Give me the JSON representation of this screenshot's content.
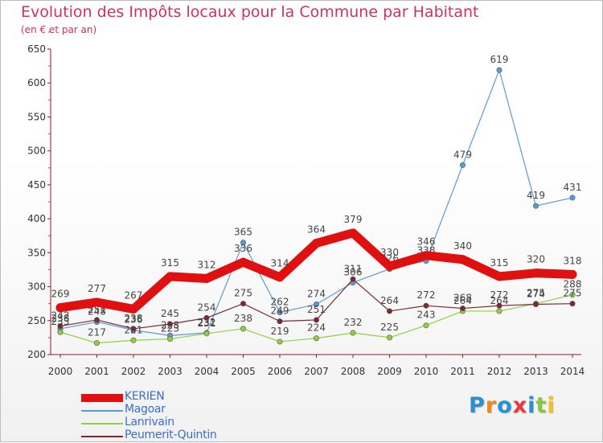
{
  "chart_data": {
    "type": "line",
    "title": "Evolution des Impôts locaux pour la Commune par Habitant",
    "subtitle": "(en € et par an)",
    "xlabel": "",
    "ylabel": "",
    "ylim": [
      200,
      650
    ],
    "y_ticks": [
      200,
      250,
      300,
      350,
      400,
      450,
      500,
      550,
      600,
      650
    ],
    "categories": [
      "2000",
      "2001",
      "2002",
      "2003",
      "2004",
      "2005",
      "2006",
      "2007",
      "2008",
      "2009",
      "2010",
      "2011",
      "2012",
      "2013",
      "2014"
    ],
    "grid": false,
    "legend_position": "bottom-left",
    "series": [
      {
        "name": "KERIEN",
        "color": "#e01010",
        "values": [
          269,
          277,
          267,
          315,
          312,
          336,
          314,
          364,
          379,
          330,
          346,
          340,
          315,
          320,
          318
        ],
        "labels": [
          "269",
          "277",
          "267",
          "315",
          "312",
          "336",
          "314",
          "364",
          "379",
          "330",
          "346",
          "340",
          "315",
          "320",
          "318"
        ]
      },
      {
        "name": "Magoar",
        "color": "#5b9bd5",
        "values": [
          238,
          248,
          236,
          228,
          232,
          365,
          262,
          274,
          306,
          326,
          338,
          479,
          619,
          419,
          431
        ],
        "labels": [
          "238",
          "248",
          "236",
          "228",
          "232",
          "365",
          "262",
          "274",
          "306",
          "326",
          "338",
          "479",
          "619",
          "419",
          "431"
        ]
      },
      {
        "name": "Lanrivain",
        "color": "#90d040",
        "values": [
          233,
          217,
          221,
          223,
          231,
          238,
          219,
          224,
          232,
          225,
          243,
          264,
          264,
          275,
          288
        ],
        "labels": [
          "233",
          "217",
          "221",
          "223",
          "231",
          "238",
          "219",
          "224",
          "232",
          "225",
          "243",
          "264",
          "264",
          "275",
          "288"
        ]
      },
      {
        "name": "Peumerit-Quintin",
        "color": "#7a2a30",
        "values": [
          242,
          251,
          238,
          245,
          254,
          275,
          249,
          251,
          311,
          264,
          272,
          268,
          272,
          274,
          275
        ],
        "labels": [
          "242",
          "251",
          "238",
          "245",
          "254",
          "275",
          "249",
          "251",
          "311",
          "264",
          "272",
          "268",
          "272",
          "274",
          "275"
        ]
      }
    ]
  },
  "logo": {
    "letters": [
      "P",
      "r",
      "o",
      "x",
      "i",
      "t",
      "i"
    ],
    "colors": [
      "#2b8fd8",
      "#f08a1c",
      "#2b8fd8",
      "#e83a3a",
      "#2b8fd8",
      "#8cc63f",
      "#f0c020"
    ]
  }
}
